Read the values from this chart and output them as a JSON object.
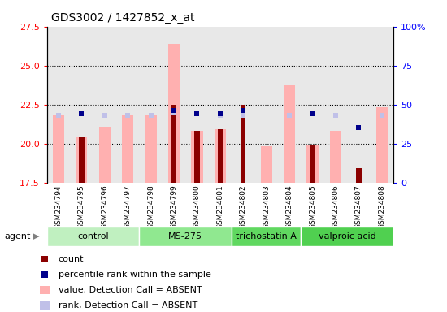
{
  "title": "GDS3002 / 1427852_x_at",
  "samples": [
    "GSM234794",
    "GSM234795",
    "GSM234796",
    "GSM234797",
    "GSM234798",
    "GSM234799",
    "GSM234800",
    "GSM234801",
    "GSM234802",
    "GSM234803",
    "GSM234804",
    "GSM234805",
    "GSM234806",
    "GSM234807",
    "GSM234808"
  ],
  "groups": [
    {
      "label": "control",
      "color": "#c0f0c0",
      "start": 0,
      "end": 3
    },
    {
      "label": "MS-275",
      "color": "#90e890",
      "start": 4,
      "end": 7
    },
    {
      "label": "trichostatin A",
      "color": "#60d860",
      "start": 8,
      "end": 10
    },
    {
      "label": "valproic acid",
      "color": "#50d050",
      "start": 11,
      "end": 14
    }
  ],
  "value_absent": [
    21.8,
    20.4,
    21.1,
    21.8,
    21.8,
    26.4,
    20.8,
    20.9,
    null,
    19.8,
    23.8,
    19.9,
    20.8,
    null,
    22.3
  ],
  "rank_absent_val": [
    21.6,
    null,
    21.5,
    21.6,
    21.6,
    22.2,
    null,
    21.6,
    21.6,
    null,
    21.6,
    null,
    21.5,
    null,
    21.6
  ],
  "count_val": [
    null,
    20.4,
    null,
    null,
    null,
    22.5,
    20.8,
    20.9,
    22.5,
    null,
    null,
    19.9,
    null,
    18.4,
    null
  ],
  "percentile_val": [
    null,
    44,
    null,
    null,
    null,
    46,
    44,
    44,
    46,
    null,
    null,
    44,
    null,
    35,
    null
  ],
  "percentile_absent": [
    43,
    null,
    43,
    43,
    43,
    45,
    null,
    43,
    43,
    null,
    43,
    null,
    43,
    null,
    43
  ],
  "ylim_left": [
    17.5,
    27.5
  ],
  "ylim_right": [
    0,
    100
  ],
  "yticks_left": [
    17.5,
    20.0,
    22.5,
    25.0,
    27.5
  ],
  "yticks_right": [
    0,
    25,
    50,
    75,
    100
  ],
  "color_value_absent": "#ffb0b0",
  "color_rank_absent": "#c0c0e8",
  "color_count": "#8b0000",
  "color_percentile": "#00008b",
  "bg_plot": "#e8e8e8",
  "bg_samples": "#c8c8c8"
}
